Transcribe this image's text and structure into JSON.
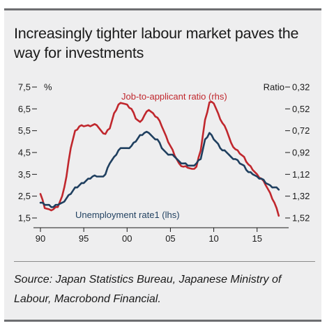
{
  "title": "Increasingly tighter labour market paves the way for investments",
  "source": "Source: Japan Statistics Bureau, Japanese Ministry of Labour, Macrobond Financial.",
  "chart_data": {
    "type": "line",
    "left_axis": {
      "label": "%",
      "ticks": [
        "7,5",
        "6,5",
        "5,5",
        "4,5",
        "3,5",
        "2,5",
        "1,5"
      ],
      "ylim": [
        1.5,
        7.5
      ]
    },
    "right_axis": {
      "label": "Ratio",
      "ticks": [
        "0,32",
        "0,52",
        "0,72",
        "0,92",
        "1,12",
        "1,32",
        "1,52"
      ],
      "ylim": [
        1.52,
        0.32
      ],
      "inverted": true
    },
    "x_axis": {
      "ticks": [
        "90",
        "95",
        "00",
        "05",
        "10",
        "15"
      ],
      "tick_values": [
        1990,
        1995,
        2000,
        2005,
        2010,
        2015
      ],
      "xlim": [
        1990,
        2018
      ]
    },
    "series": [
      {
        "name": "Job-to-applicant ratio (rhs)",
        "axis": "right",
        "color": "#c0272d",
        "x": [
          1990,
          1990.5,
          1991,
          1991.5,
          1992,
          1992.5,
          1993,
          1993.5,
          1994,
          1994.5,
          1995,
          1995.5,
          1996,
          1996.5,
          1997,
          1997.5,
          1998,
          1998.5,
          1999,
          1999.5,
          2000,
          2000.5,
          2001,
          2001.5,
          2002,
          2002.5,
          2003,
          2003.5,
          2004,
          2004.5,
          2005,
          2005.5,
          2006,
          2006.5,
          2007,
          2007.5,
          2008,
          2008.5,
          2009,
          2009.5,
          2010,
          2010.5,
          2011,
          2011.5,
          2012,
          2012.5,
          2013,
          2013.5,
          2014,
          2014.5,
          2015,
          2015.5,
          2016,
          2016.5,
          2017,
          2017.5
        ],
        "values": [
          1.3,
          1.43,
          1.44,
          1.44,
          1.42,
          1.32,
          1.14,
          0.88,
          0.72,
          0.68,
          0.68,
          0.67,
          0.67,
          0.67,
          0.72,
          0.75,
          0.7,
          0.56,
          0.48,
          0.47,
          0.48,
          0.52,
          0.61,
          0.64,
          0.58,
          0.53,
          0.56,
          0.6,
          0.68,
          0.77,
          0.86,
          0.95,
          1.02,
          1.05,
          1.06,
          1.07,
          1.05,
          0.9,
          0.62,
          0.46,
          0.47,
          0.56,
          0.65,
          0.72,
          0.83,
          0.89,
          0.93,
          0.96,
          1.03,
          1.08,
          1.12,
          1.16,
          1.22,
          1.29,
          1.38,
          1.5
        ]
      },
      {
        "name": "Unemployment rate1 (lhs)",
        "axis": "left",
        "color": "#1f3f5f",
        "x": [
          1990,
          1990.5,
          1991,
          1991.5,
          1992,
          1992.5,
          1993,
          1993.5,
          1994,
          1994.5,
          1995,
          1995.5,
          1996,
          1996.5,
          1997,
          1997.5,
          1998,
          1998.5,
          1999,
          1999.5,
          2000,
          2000.5,
          2001,
          2001.5,
          2002,
          2002.5,
          2003,
          2003.5,
          2004,
          2004.5,
          2005,
          2005.5,
          2006,
          2006.5,
          2007,
          2007.5,
          2008,
          2008.5,
          2009,
          2009.5,
          2010,
          2010.5,
          2011,
          2011.5,
          2012,
          2012.5,
          2013,
          2013.5,
          2014,
          2014.5,
          2015,
          2015.5,
          2016,
          2016.5,
          2017,
          2017.5
        ],
        "values": [
          2.2,
          2.1,
          2.1,
          2.0,
          2.1,
          2.2,
          2.4,
          2.6,
          2.9,
          3.0,
          3.1,
          3.3,
          3.4,
          3.4,
          3.4,
          3.5,
          4.0,
          4.3,
          4.6,
          4.7,
          4.7,
          4.8,
          5.0,
          5.3,
          5.4,
          5.4,
          5.2,
          5.1,
          4.7,
          4.5,
          4.4,
          4.3,
          4.1,
          4.0,
          3.9,
          3.9,
          4.0,
          4.2,
          5.1,
          5.4,
          5.1,
          4.9,
          4.6,
          4.5,
          4.3,
          4.2,
          4.0,
          3.9,
          3.6,
          3.5,
          3.4,
          3.3,
          3.1,
          3.0,
          2.9,
          2.8
        ]
      }
    ]
  }
}
